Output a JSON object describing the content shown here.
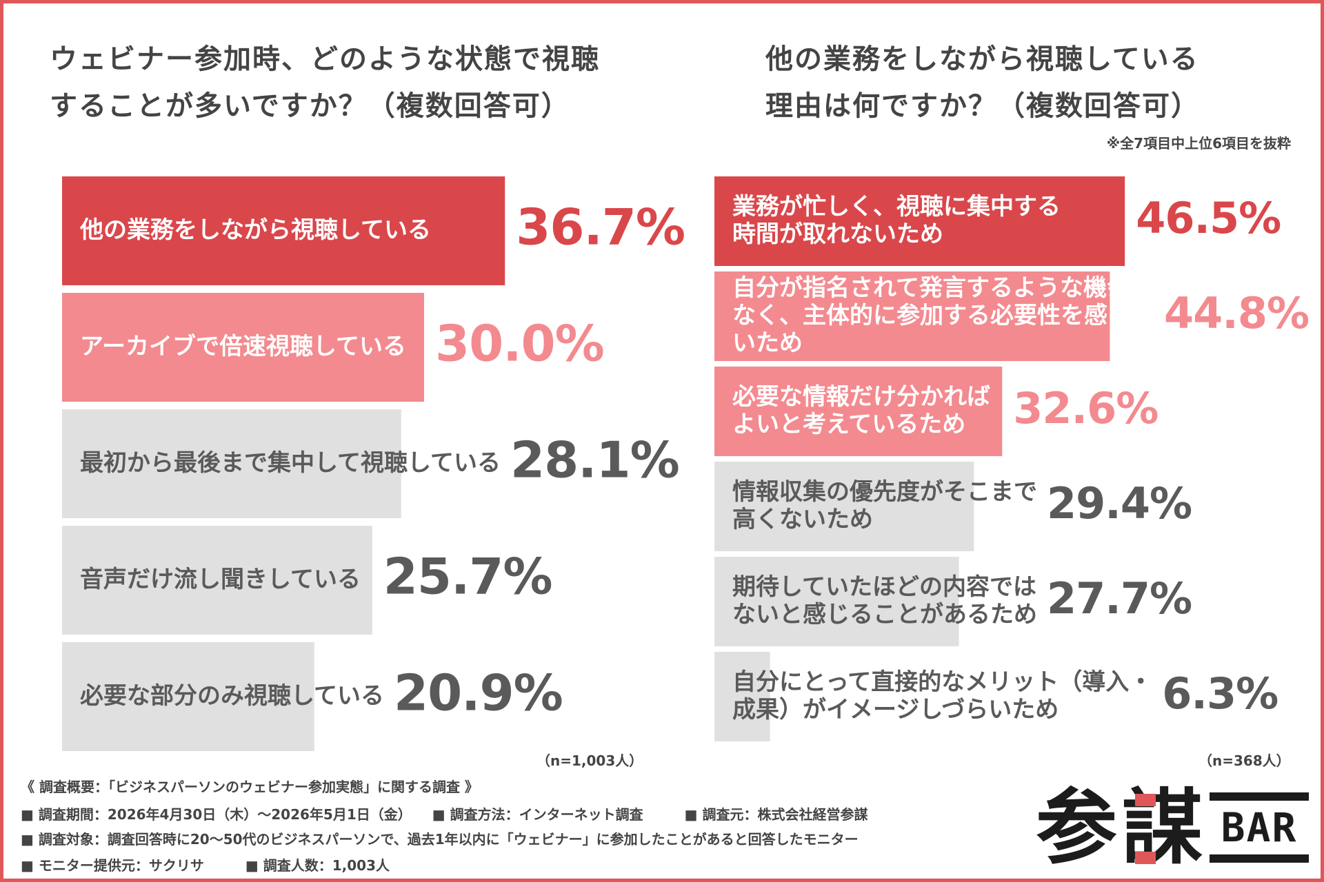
{
  "left": {
    "title_lines": [
      "ウェビナー参加時、どのような状態で視聴",
      "することが多いですか？（複数回答可）"
    ],
    "n_note": "（n=1,003人）"
  },
  "right": {
    "title_lines": [
      "他の業務をしながら視聴している",
      "理由は何ですか？（複数回答可）"
    ],
    "note": "※全7項目中上位6項目を抜粋",
    "n_note": "（n=368人）"
  },
  "colors": {
    "highlight_1": "#d9474b",
    "highlight_2": "#f38a8f",
    "neutral": "#e0e0e0",
    "text_dark": "#5a5a5a",
    "border": "#e0575a"
  },
  "chart_data": [
    {
      "type": "bar",
      "orientation": "horizontal",
      "title": "ウェビナー参加時、どのような状態で視聴することが多いですか？（複数回答可）",
      "unit": "%",
      "categories": [
        "他の業務をしながら視聴している",
        "アーカイブで倍速視聴している",
        "最初から最後まで集中して視聴している",
        "音声だけ流し聞きしている",
        "必要な部分のみ視聴している"
      ],
      "values": [
        36.7,
        30.0,
        28.1,
        25.7,
        20.9
      ],
      "value_labels": [
        "36.7%",
        "30.0%",
        "28.1%",
        "25.7%",
        "20.9%"
      ],
      "highlight": [
        "primary",
        "secondary",
        "none",
        "none",
        "none"
      ]
    },
    {
      "type": "bar",
      "orientation": "horizontal",
      "title": "他の業務をしながら視聴している理由は何ですか？（複数回答可）",
      "unit": "%",
      "categories": [
        [
          "業務が忙しく、視聴に集中する",
          "時間が取れないため"
        ],
        [
          "自分が指名されて発言するような機会が",
          "なく、主体的に参加する必要性を感じな",
          "いため"
        ],
        [
          "必要な情報だけ分かれば",
          "よいと考えているため"
        ],
        [
          "情報収集の優先度がそこまで",
          "高くないため"
        ],
        [
          "期待していたほどの内容では",
          "ないと感じることがあるため"
        ],
        [
          "自分にとって直接的なメリット（導入・",
          "成果）がイメージしづらいため"
        ]
      ],
      "values": [
        46.5,
        44.8,
        32.6,
        29.4,
        27.7,
        6.3
      ],
      "value_labels": [
        "46.5%",
        "44.8%",
        "32.6%",
        "29.4%",
        "27.7%",
        "6.3%"
      ],
      "highlight": [
        "primary",
        "secondary",
        "secondary",
        "none",
        "none",
        "none"
      ]
    }
  ],
  "footer": {
    "lines": [
      "《 調査概要：「ビジネスパーソンのウェビナー参加実態」に関する調査 》",
      "■ 調査期間：2026年4月30日（木）～2026年5月1日（金）　　■ 調査方法：インターネット調査　　　■ 調査元：株式会社経営参謀",
      "■ 調査対象：調査回答時に20～50代のビジネスパーソンで、過去1年以内に「ウェビナー」に参加したことがあると回答したモニター",
      "■ モニター提供元：サクリサ　　　■ 調査人数：1,003人"
    ]
  },
  "logo": {
    "kanji": "参謀",
    "bar": "BAR"
  }
}
